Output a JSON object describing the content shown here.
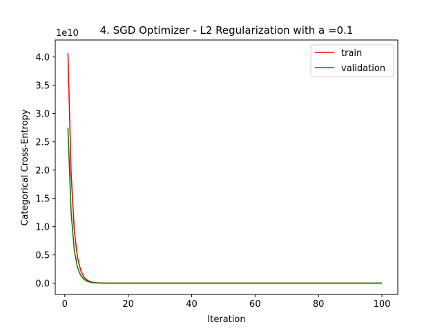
{
  "chart_data": {
    "type": "line",
    "title": "4. SGD Optimizer - L2 Regularization with a =0.1",
    "xlabel": "Iteration",
    "ylabel": "Categorical Cross-Entropy",
    "y_offset_label": "1e10",
    "xlim": [
      -3,
      105
    ],
    "ylim": [
      -0.2,
      4.3
    ],
    "y_scale_factor": 10000000000.0,
    "xticks": [
      0,
      20,
      40,
      60,
      80,
      100
    ],
    "xtick_labels": [
      "0",
      "20",
      "40",
      "60",
      "80",
      "100"
    ],
    "yticks": [
      0.0,
      0.5,
      1.0,
      1.5,
      2.0,
      2.5,
      3.0,
      3.5,
      4.0
    ],
    "ytick_labels": [
      "0.0",
      "0.5",
      "1.0",
      "1.5",
      "2.0",
      "2.5",
      "3.0",
      "3.5",
      "4.0"
    ],
    "grid": false,
    "legend_position": "top-right",
    "series": [
      {
        "name": "train",
        "color": "#ff0000",
        "x": [
          1,
          2,
          3,
          4,
          5,
          6,
          7,
          8,
          9,
          10,
          11,
          12,
          14,
          16,
          20,
          30,
          40,
          50,
          60,
          70,
          80,
          90,
          100
        ],
        "y": [
          4.07,
          1.95,
          0.93,
          0.46,
          0.23,
          0.11,
          0.055,
          0.027,
          0.013,
          0.006,
          0.003,
          0.0015,
          0.0004,
          0.0001,
          0.0,
          0.0,
          0.0,
          0.0,
          0.0,
          0.0,
          0.0,
          0.0,
          0.0
        ]
      },
      {
        "name": "validation",
        "color": "#008000",
        "x": [
          1,
          2,
          3,
          4,
          5,
          6,
          7,
          8,
          9,
          10,
          11,
          12,
          14,
          16,
          20,
          30,
          40,
          50,
          60,
          70,
          80,
          90,
          100
        ],
        "y": [
          2.75,
          1.25,
          0.58,
          0.28,
          0.14,
          0.07,
          0.035,
          0.017,
          0.008,
          0.004,
          0.002,
          0.001,
          0.0003,
          0.0001,
          0.0,
          0.0,
          0.0,
          0.0,
          0.0,
          0.0,
          0.0,
          0.0,
          0.0
        ]
      }
    ]
  }
}
